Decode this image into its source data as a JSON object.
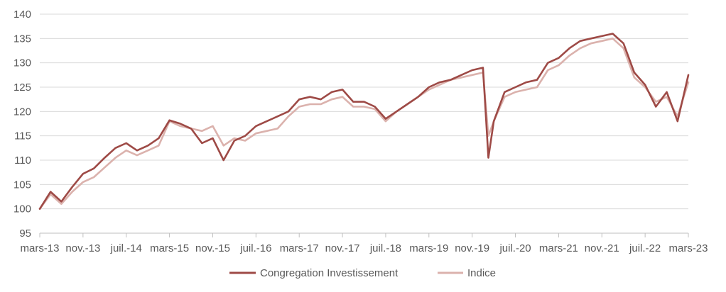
{
  "chart_data": {
    "type": "line",
    "title": "",
    "xlabel": "",
    "ylabel": "",
    "ylim": [
      95,
      140
    ],
    "yticks": [
      95,
      100,
      105,
      110,
      115,
      120,
      125,
      130,
      135,
      140
    ],
    "grid": "horizontal",
    "legend": "bottom",
    "x_tick_labels": [
      "mars-13",
      "nov.-13",
      "juil.-14",
      "mars-15",
      "nov.-15",
      "juil.-16",
      "mars-17",
      "nov.-17",
      "juil.-18",
      "mars-19",
      "nov.-19",
      "juil.-20",
      "mars-21",
      "nov.-21",
      "juil.-22",
      "mars-23"
    ],
    "x": [
      "2013-03",
      "2013-05",
      "2013-07",
      "2013-09",
      "2013-11",
      "2014-01",
      "2014-03",
      "2014-05",
      "2014-07",
      "2014-09",
      "2014-11",
      "2015-01",
      "2015-03",
      "2015-05",
      "2015-07",
      "2015-09",
      "2015-11",
      "2016-01",
      "2016-03",
      "2016-05",
      "2016-07",
      "2016-09",
      "2016-11",
      "2017-01",
      "2017-03",
      "2017-05",
      "2017-07",
      "2017-09",
      "2017-11",
      "2018-01",
      "2018-03",
      "2018-05",
      "2018-07",
      "2018-09",
      "2018-11",
      "2019-01",
      "2019-03",
      "2019-05",
      "2019-07",
      "2019-09",
      "2019-11",
      "2020-01",
      "2020-02",
      "2020-03",
      "2020-05",
      "2020-07",
      "2020-09",
      "2020-11",
      "2021-01",
      "2021-03",
      "2021-05",
      "2021-07",
      "2021-09",
      "2021-11",
      "2022-01",
      "2022-03",
      "2022-05",
      "2022-07",
      "2022-09",
      "2022-11",
      "2023-01",
      "2023-03"
    ],
    "series": [
      {
        "name": "Congregation Investissement",
        "color": "#9e4a46",
        "values": [
          100,
          103.5,
          101.5,
          104.5,
          107.2,
          108.3,
          110.5,
          112.5,
          113.5,
          112,
          113,
          114.5,
          118.2,
          117.5,
          116.5,
          113.5,
          114.5,
          110,
          114,
          115,
          117,
          118,
          119,
          120,
          122.5,
          123,
          122.5,
          124,
          124.5,
          122,
          122,
          121,
          118.5,
          120,
          121.5,
          123,
          125,
          126,
          126.5,
          127.5,
          128.5,
          129,
          110.5,
          118,
          124,
          125,
          126,
          126.5,
          130,
          131,
          133,
          134.5,
          135,
          135.5,
          136,
          134,
          128,
          125.5,
          121,
          124,
          118,
          127.5
        ]
      },
      {
        "name": "Indice",
        "color": "#dbb2ad",
        "values": [
          100,
          103,
          101,
          103.5,
          105.5,
          106.5,
          108.5,
          110.5,
          112,
          111,
          112,
          113,
          118,
          117,
          116.5,
          116,
          117,
          113,
          114.5,
          114,
          115.5,
          116,
          116.5,
          119,
          121,
          121.5,
          121.5,
          122.5,
          123,
          121,
          121,
          120.5,
          118,
          120,
          121.5,
          123,
          124.5,
          125.5,
          126.5,
          127,
          127.5,
          128,
          115,
          118,
          123,
          124,
          124.5,
          125,
          128.5,
          129.5,
          131.5,
          133,
          134,
          134.5,
          135,
          133,
          127,
          125,
          122,
          123,
          119,
          126
        ]
      }
    ]
  }
}
